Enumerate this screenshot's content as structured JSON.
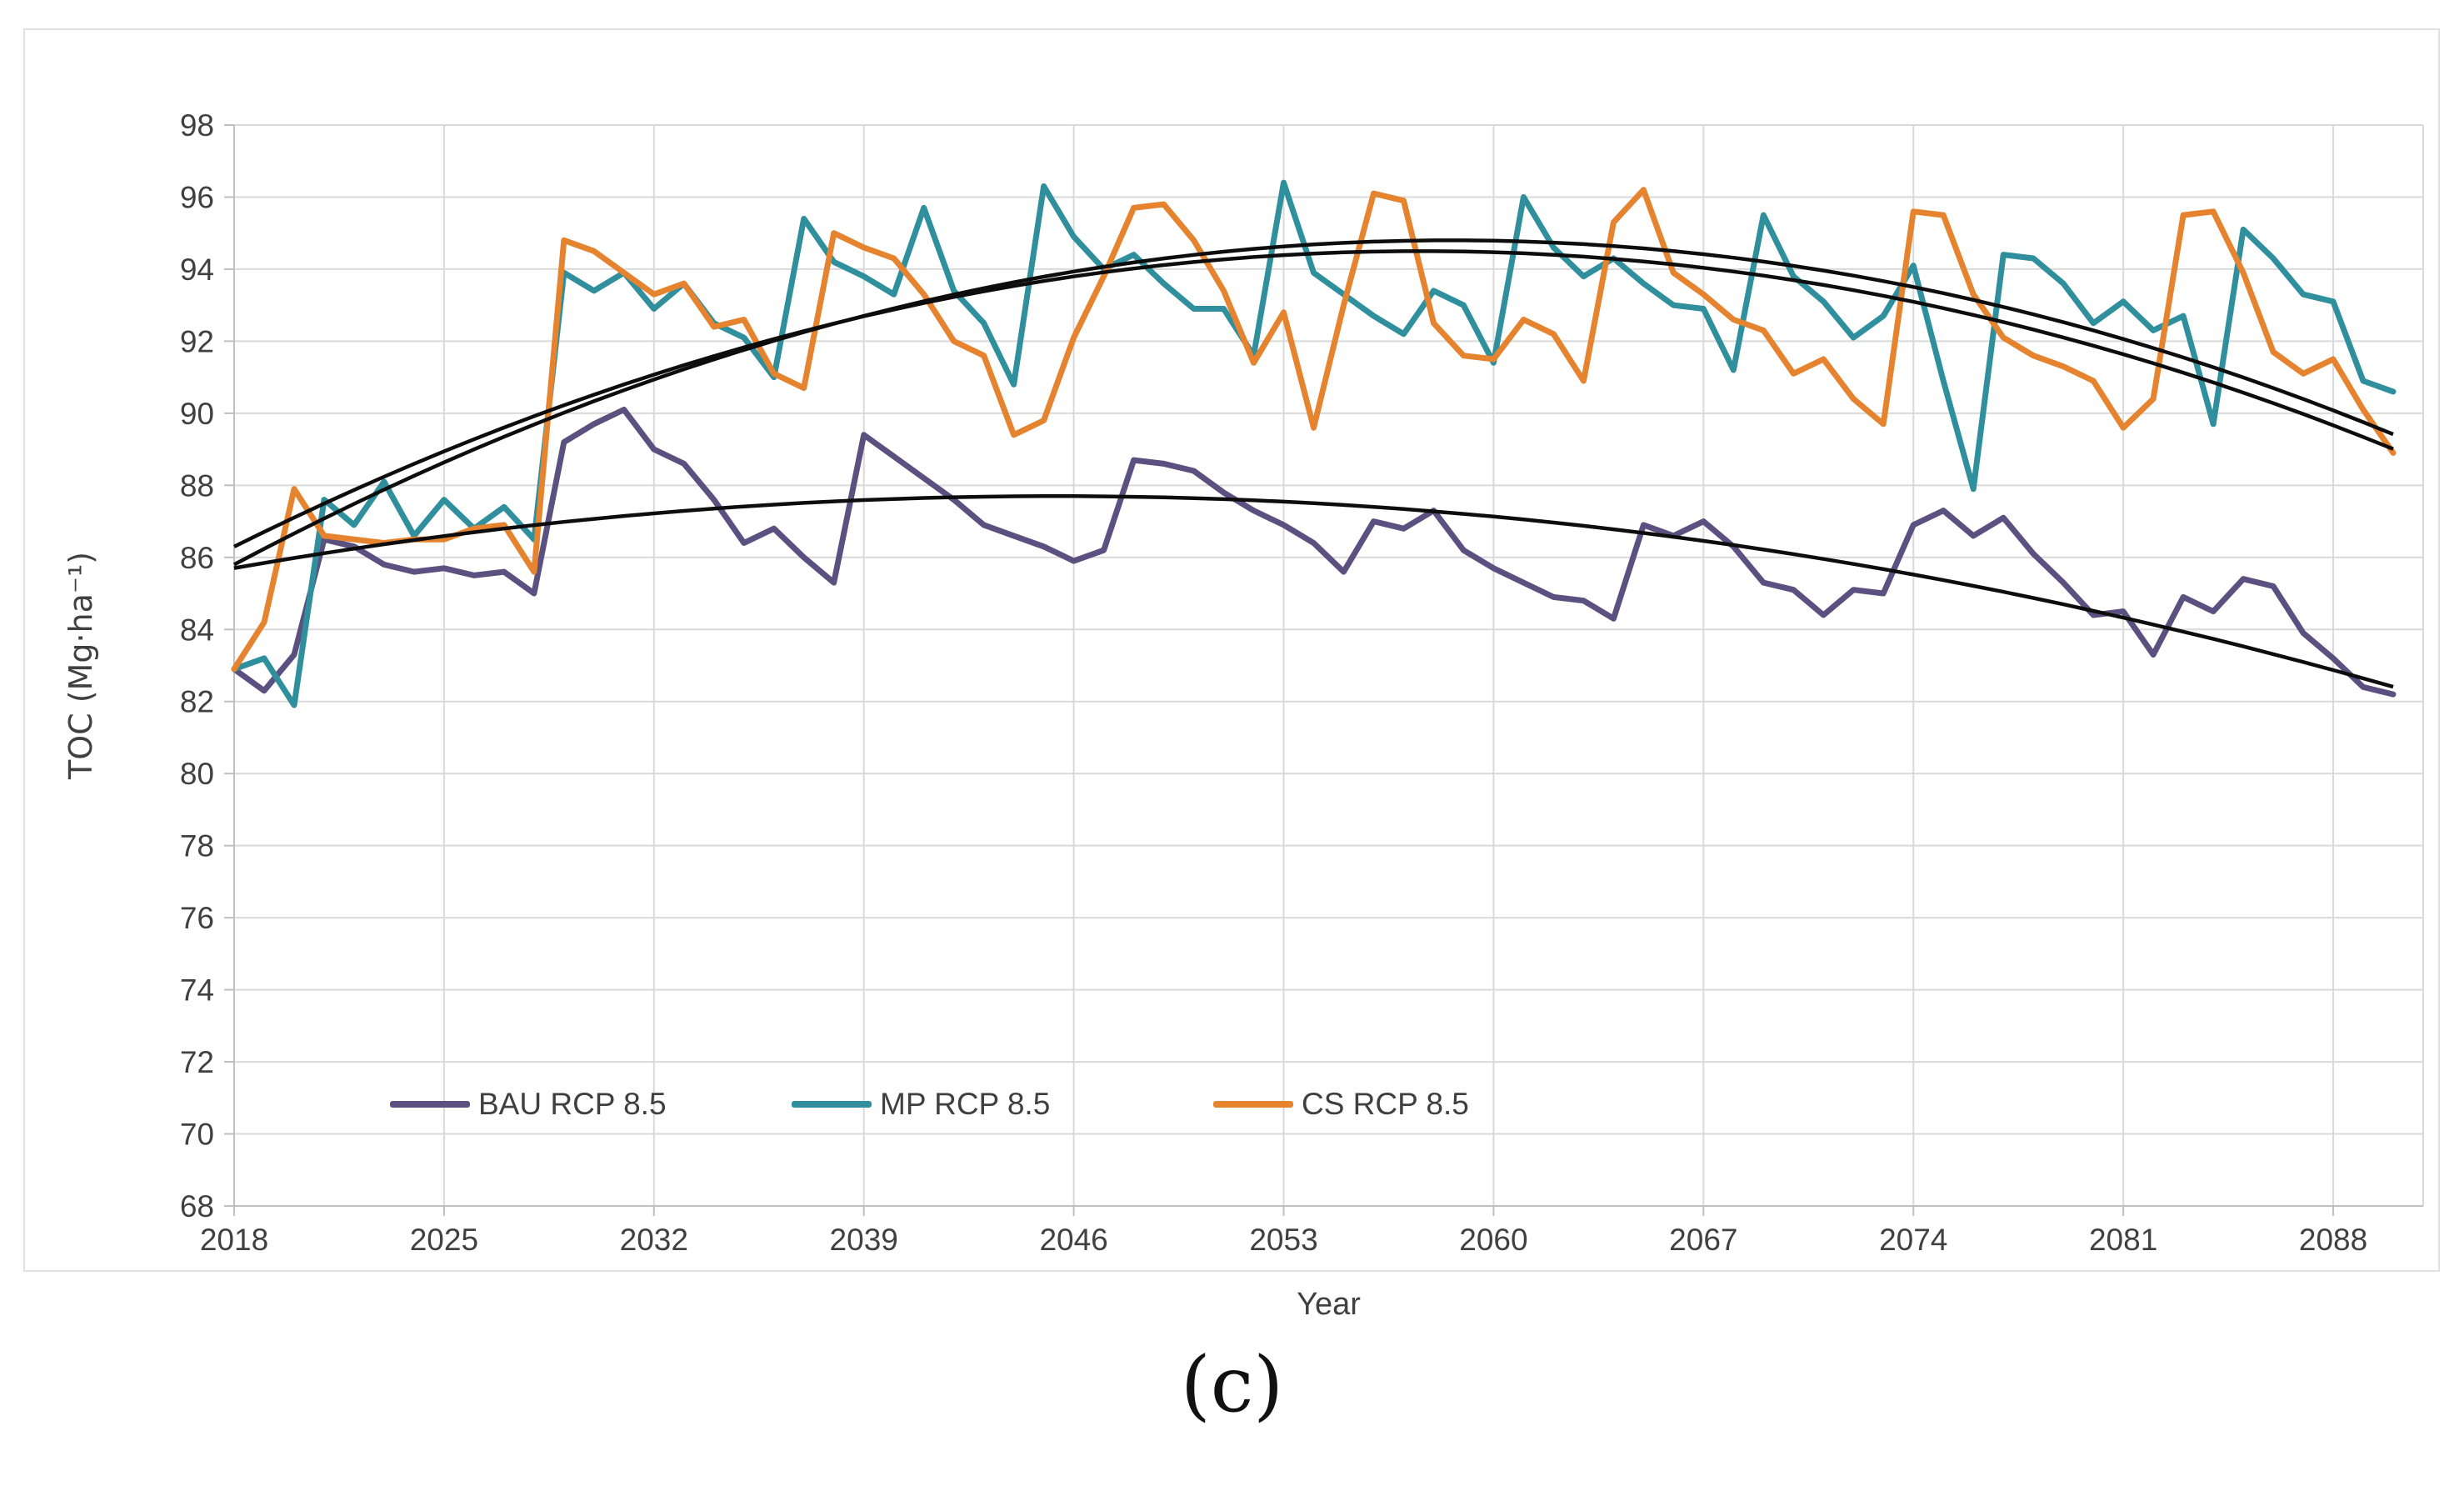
{
  "page": {
    "caption": "(c)"
  },
  "colors": {
    "bau": "#5b5180",
    "mp": "#2f8f9d",
    "cs": "#e5832e",
    "trend": "#0d0d0d",
    "gridline": "#d9d9d9",
    "axis_line": "#bfbfbf",
    "axis_text": "#404040"
  },
  "chart_data": {
    "type": "line",
    "title": "",
    "xlabel": "Year",
    "ylabel": "TOC (Mg·ha⁻¹)",
    "xlim": [
      2018,
      2091
    ],
    "ylim": [
      68,
      98
    ],
    "grid": true,
    "legend_position": "inside-bottom",
    "xticks": [
      2018,
      2025,
      2032,
      2039,
      2046,
      2053,
      2060,
      2067,
      2074,
      2081,
      2088
    ],
    "yticks": [
      68,
      70,
      72,
      74,
      76,
      78,
      80,
      82,
      84,
      86,
      88,
      90,
      92,
      94,
      96,
      98
    ],
    "x": [
      2018,
      2019,
      2020,
      2021,
      2022,
      2023,
      2024,
      2025,
      2026,
      2027,
      2028,
      2029,
      2030,
      2031,
      2032,
      2033,
      2034,
      2035,
      2036,
      2037,
      2038,
      2039,
      2040,
      2041,
      2042,
      2043,
      2044,
      2045,
      2046,
      2047,
      2048,
      2049,
      2050,
      2051,
      2052,
      2053,
      2054,
      2055,
      2056,
      2057,
      2058,
      2059,
      2060,
      2061,
      2062,
      2063,
      2064,
      2065,
      2066,
      2067,
      2068,
      2069,
      2070,
      2071,
      2072,
      2073,
      2074,
      2075,
      2076,
      2077,
      2078,
      2079,
      2080,
      2081,
      2082,
      2083,
      2084,
      2085,
      2086,
      2087,
      2088,
      2089,
      2090
    ],
    "series": [
      {
        "name": "BAU RCP 8.5",
        "color_key": "bau",
        "values": [
          82.9,
          82.3,
          83.3,
          86.5,
          86.3,
          85.8,
          85.6,
          85.7,
          85.5,
          85.6,
          85.0,
          89.2,
          89.7,
          90.1,
          89.0,
          88.6,
          87.6,
          86.4,
          86.8,
          86.0,
          85.3,
          89.4,
          88.8,
          88.2,
          87.6,
          86.9,
          86.6,
          86.3,
          85.9,
          86.2,
          88.7,
          88.6,
          88.4,
          87.8,
          87.3,
          86.9,
          86.4,
          85.6,
          87.0,
          86.8,
          87.3,
          86.2,
          85.7,
          85.3,
          84.9,
          84.8,
          84.3,
          86.9,
          86.6,
          87.0,
          86.3,
          85.3,
          85.1,
          84.4,
          85.1,
          85.0,
          86.9,
          87.3,
          86.6,
          87.1,
          86.1,
          85.3,
          84.4,
          84.5,
          83.3,
          84.9,
          84.5,
          85.4,
          85.2,
          83.9,
          83.2,
          82.4,
          82.2
        ]
      },
      {
        "name": "MP RCP 8.5",
        "color_key": "mp",
        "values": [
          82.9,
          83.2,
          81.9,
          87.6,
          86.9,
          88.1,
          86.6,
          87.6,
          86.8,
          87.4,
          86.5,
          93.9,
          93.4,
          93.9,
          92.9,
          93.6,
          92.5,
          92.1,
          91.0,
          95.4,
          94.2,
          93.8,
          93.3,
          95.7,
          93.4,
          92.5,
          90.8,
          96.3,
          94.9,
          94.0,
          94.4,
          93.6,
          92.9,
          92.9,
          91.6,
          96.4,
          93.9,
          93.3,
          92.7,
          92.2,
          93.4,
          93.0,
          91.4,
          96.0,
          94.6,
          93.8,
          94.3,
          93.6,
          93.0,
          92.9,
          91.2,
          95.5,
          93.8,
          93.1,
          92.1,
          92.7,
          94.1,
          90.9,
          87.9,
          94.4,
          94.3,
          93.6,
          92.5,
          93.1,
          92.3,
          92.7,
          89.7,
          95.1,
          94.3,
          93.3,
          93.1,
          90.9,
          90.6
        ]
      },
      {
        "name": "CS RCP 8.5",
        "color_key": "cs",
        "values": [
          82.9,
          84.2,
          87.9,
          86.6,
          86.5,
          86.4,
          86.5,
          86.5,
          86.8,
          86.9,
          85.6,
          94.8,
          94.5,
          93.9,
          93.3,
          93.6,
          92.4,
          92.6,
          91.1,
          90.7,
          95.0,
          94.6,
          94.3,
          93.3,
          92.0,
          91.6,
          89.4,
          89.8,
          92.1,
          93.8,
          95.7,
          95.8,
          94.8,
          93.4,
          91.4,
          92.8,
          89.6,
          93.0,
          96.1,
          95.9,
          92.5,
          91.6,
          91.5,
          92.6,
          92.2,
          90.9,
          95.3,
          96.2,
          93.9,
          93.3,
          92.6,
          92.3,
          91.1,
          91.5,
          90.4,
          89.7,
          95.6,
          95.5,
          93.3,
          92.1,
          91.6,
          91.3,
          90.9,
          89.6,
          90.4,
          95.5,
          95.6,
          93.9,
          91.7,
          91.1,
          91.5,
          90.1,
          88.9
        ]
      }
    ],
    "trendlines": [
      {
        "for": "BAU RCP 8.5",
        "form": "quadratic_vertex",
        "peak_year": 2045.4,
        "peak_value": 87.7,
        "curvature": 0.00266
      },
      {
        "for": "MP RCP 8.5",
        "form": "quadratic_vertex",
        "peak_year": 2058.6,
        "peak_value": 94.8,
        "curvature": 0.00546
      },
      {
        "for": "CS RCP 8.5",
        "form": "quadratic_vertex",
        "peak_year": 2057.6,
        "peak_value": 94.5,
        "curvature": 0.00523
      }
    ]
  }
}
